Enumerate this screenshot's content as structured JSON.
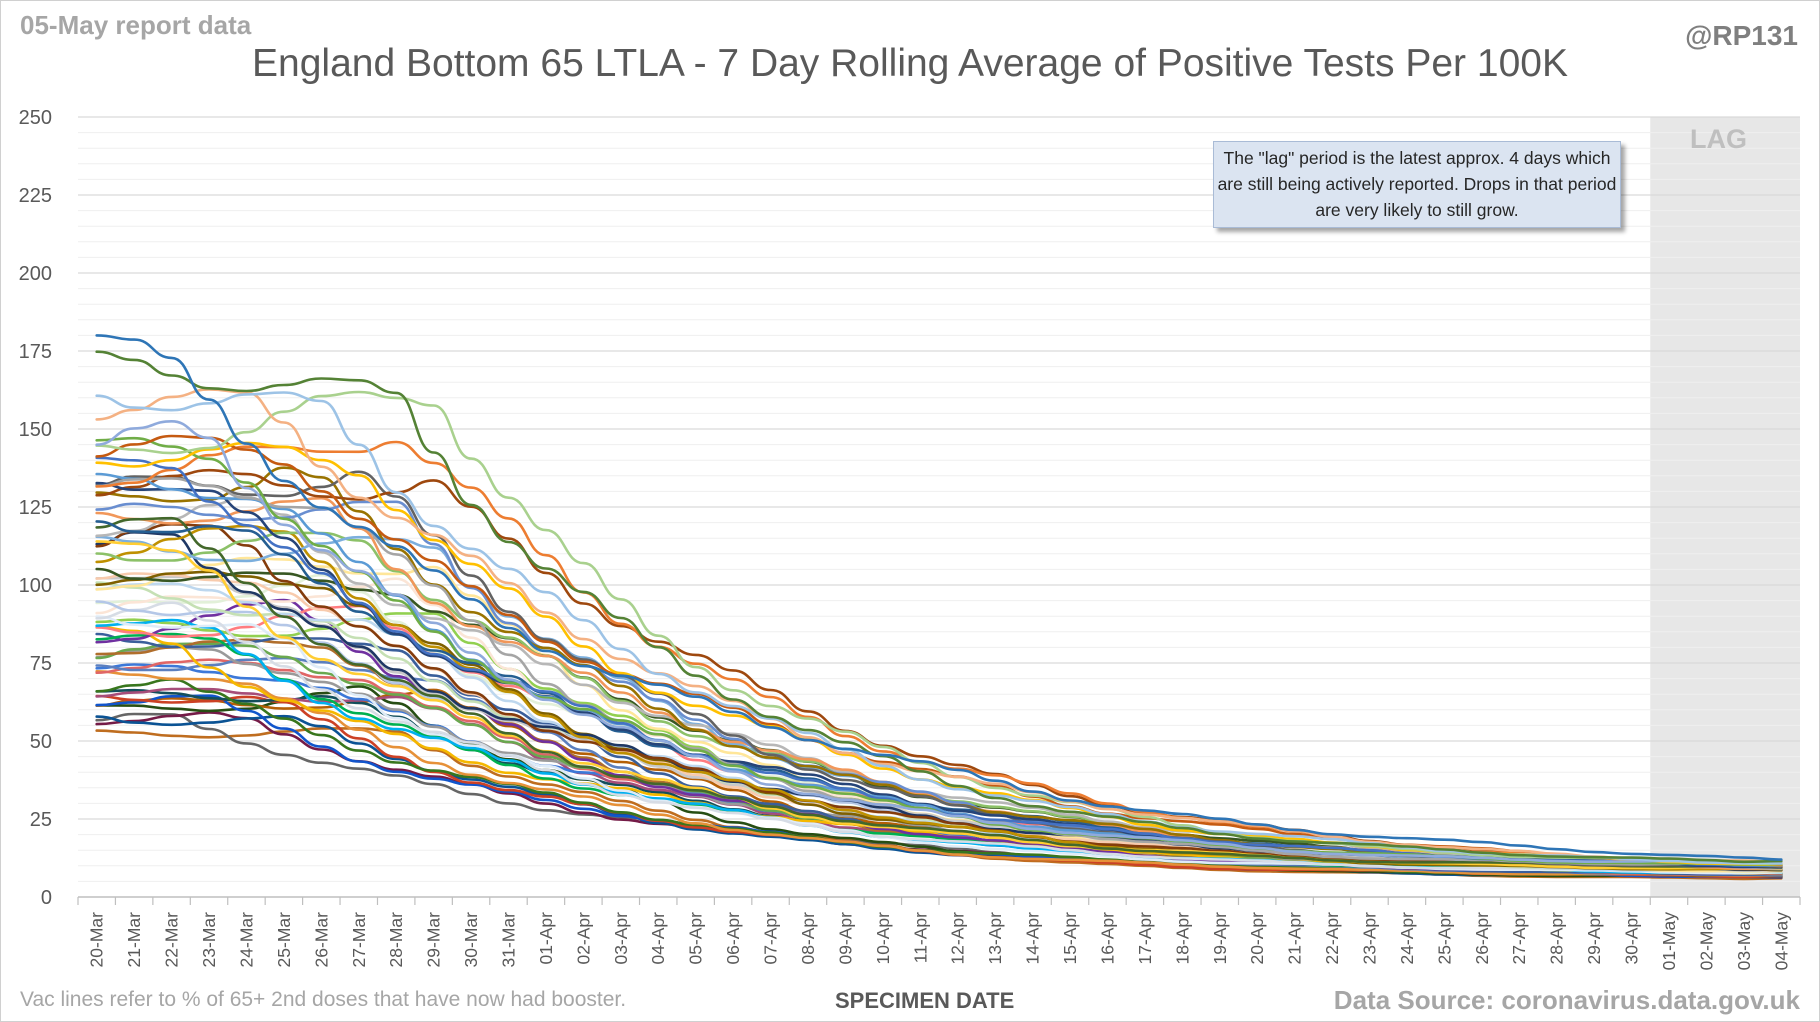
{
  "header": {
    "report_date_label": "05-May report data",
    "handle": "@RP131",
    "title": "England Bottom 65 LTLA - 7 Day Rolling Average of Positive Tests Per 100K"
  },
  "lag": {
    "label": "LAG",
    "note": "The \"lag\" period is the latest approx. 4 days which are still being actively reported. Drops in that period are very likely to still grow.",
    "shade_color": "#e7e7e7"
  },
  "footer": {
    "note": "Vac lines refer to % of 65+ 2nd doses that have now had booster.",
    "x_axis_title": "SPECIMEN DATE",
    "source": "Data Source: coronavirus.data.gov.uk"
  },
  "chart_data": {
    "type": "line",
    "title": "England Bottom 65 LTLA - 7 Day Rolling Average of Positive Tests Per 100K",
    "xlabel": "SPECIMEN DATE",
    "ylabel": "",
    "ylim": [
      0,
      250
    ],
    "yticks": [
      0,
      25,
      50,
      75,
      100,
      125,
      150,
      175,
      200,
      225,
      250
    ],
    "grid": true,
    "legend": "none",
    "series_count": 65,
    "lag_period_start": "01-May",
    "lag_period_end": "04-May",
    "categories": [
      "20-Mar",
      "21-Mar",
      "22-Mar",
      "23-Mar",
      "24-Mar",
      "25-Mar",
      "26-Mar",
      "27-Mar",
      "28-Mar",
      "29-Mar",
      "30-Mar",
      "31-Mar",
      "01-Apr",
      "02-Apr",
      "03-Apr",
      "04-Apr",
      "05-Apr",
      "06-Apr",
      "07-Apr",
      "08-Apr",
      "09-Apr",
      "10-Apr",
      "11-Apr",
      "12-Apr",
      "13-Apr",
      "14-Apr",
      "15-Apr",
      "16-Apr",
      "17-Apr",
      "18-Apr",
      "19-Apr",
      "20-Apr",
      "21-Apr",
      "22-Apr",
      "23-Apr",
      "24-Apr",
      "25-Apr",
      "26-Apr",
      "27-Apr",
      "28-Apr",
      "29-Apr",
      "30-Apr",
      "01-May",
      "02-May",
      "03-May",
      "04-May"
    ],
    "start_values": [
      180,
      167,
      159,
      157,
      145,
      144,
      143,
      142,
      140,
      138,
      137,
      135,
      133,
      132,
      130,
      129,
      127,
      125,
      123,
      121,
      119,
      117,
      115,
      114,
      112,
      111,
      110,
      108,
      106,
      104,
      102,
      101,
      100,
      98,
      97,
      95,
      94,
      92,
      91,
      89,
      88,
      87,
      86,
      85,
      84,
      83,
      82,
      80,
      78,
      76,
      75,
      73,
      71,
      70,
      68,
      67,
      65,
      63,
      62,
      61,
      60,
      59,
      58,
      56,
      51
    ],
    "end_values": [
      12,
      11.5,
      11,
      11,
      10.8,
      10.6,
      10.5,
      10.4,
      10.3,
      10.2,
      10.1,
      10,
      10,
      9.9,
      9.8,
      9.7,
      9.6,
      9.5,
      9.5,
      9.4,
      9.3,
      9.2,
      9.1,
      9,
      9,
      8.9,
      8.8,
      8.8,
      8.7,
      8.6,
      8.5,
      8.5,
      8.4,
      8.3,
      8.2,
      8.2,
      8.1,
      8,
      8,
      7.9,
      7.8,
      7.8,
      7.7,
      7.6,
      7.6,
      7.5,
      7.4,
      7.4,
      7.3,
      7.2,
      7.2,
      7.1,
      7,
      7,
      6.9,
      6.8,
      6.8,
      6.7,
      6.6,
      6.6,
      6.5,
      6.4,
      6.3,
      6.2,
      6
    ],
    "colors": [
      "#2e75b6",
      "#548235",
      "#9dc3e6",
      "#f4b183",
      "#8faadc",
      "#a9d18e",
      "#ffc000",
      "#c55a11",
      "#70ad47",
      "#4472c4",
      "#ed7d31",
      "#a5a5a5",
      "#5b9bd5",
      "#264478",
      "#9e480e",
      "#636363",
      "#997300",
      "#255e91",
      "#43682b",
      "#698ed0",
      "#f1975a",
      "#b7b7b7",
      "#ffcd33",
      "#7cafdd",
      "#8cc168",
      "#bf9000",
      "#843c0c",
      "#1f3864",
      "#385723",
      "#7f6000",
      "#f8cbad",
      "#c9c9c9",
      "#ffe699",
      "#bdd7ee",
      "#c5e0b4",
      "#b4c7e7",
      "#d6dce5",
      "#fbe5d6",
      "#e2f0d9",
      "#deebf7",
      "#00b0f0",
      "#92d050",
      "#ff7c80",
      "#7030a0",
      "#00b050",
      "#f5b800",
      "#3a5f9b",
      "#b06e2c",
      "#6aa84f",
      "#9a9a9a",
      "#5b7fbf",
      "#e06666",
      "#3c78d8",
      "#e69138",
      "#38761d",
      "#a64d79",
      "#134f5c",
      "#cc4125",
      "#1155cc",
      "#b45f06",
      "#274e13",
      "#0b5394",
      "#741b47",
      "#666666",
      "#bf6d1f"
    ]
  }
}
